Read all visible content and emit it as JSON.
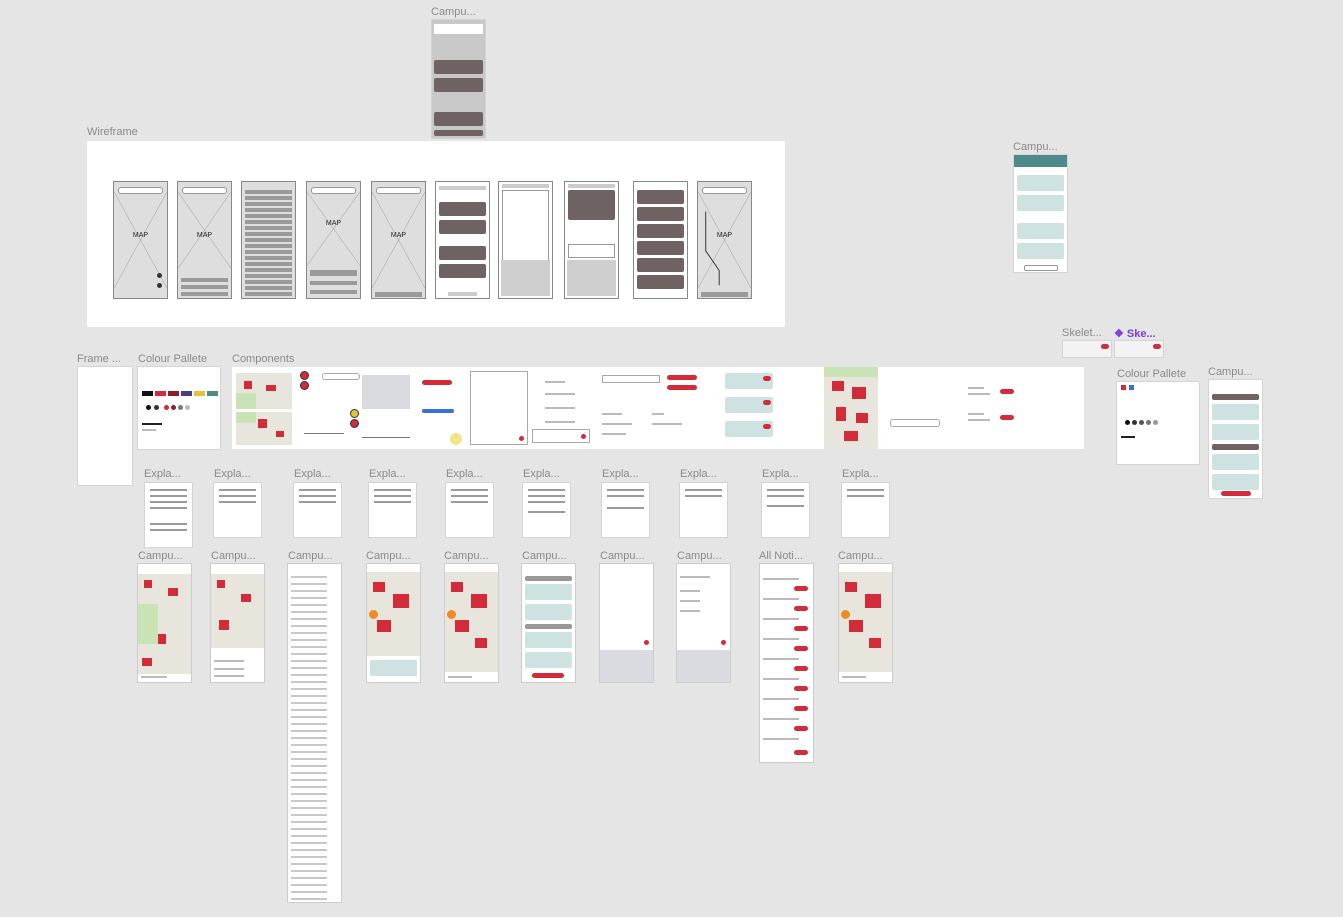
{
  "labels": {
    "campus_top": "Campu...",
    "wireframe": "Wireframe",
    "campus_right_top": "Campu...",
    "skeleton_1": "Skelet...",
    "skeleton_2": "❖ Ske...",
    "frame": "Frame ...",
    "colour_pallete_1": "Colour Pallete",
    "components": "Components",
    "colour_pallete_2": "Colour Pallete",
    "campus_right_mid": "Campu...",
    "explanations": [
      "Expla...",
      "Expla...",
      "Expla...",
      "Expla...",
      "Expla...",
      "Expla...",
      "Expla...",
      "Expla...",
      "Expla...",
      "Expla..."
    ],
    "bottom_frames": [
      "Campu...",
      "Campu...",
      "Campu...",
      "Campu...",
      "Campu...",
      "Campu...",
      "Campu...",
      "Campu...",
      "All Noti...",
      "Campu..."
    ]
  },
  "wireframe_screens": {
    "map_text": "MAP"
  },
  "colors": {
    "canvas": "#e5e5e5",
    "brand_red": "#d42b3b",
    "wire_gray": "#dedede",
    "card_dark": "#6f6262",
    "teal_light": "#cfe2e2",
    "teal_header": "#4f8a8b",
    "selection_purple": "#7b3fe4"
  },
  "icons": [
    "component-diamond-icon",
    "map-marker-icon",
    "search-icon",
    "toggle-icon"
  ]
}
